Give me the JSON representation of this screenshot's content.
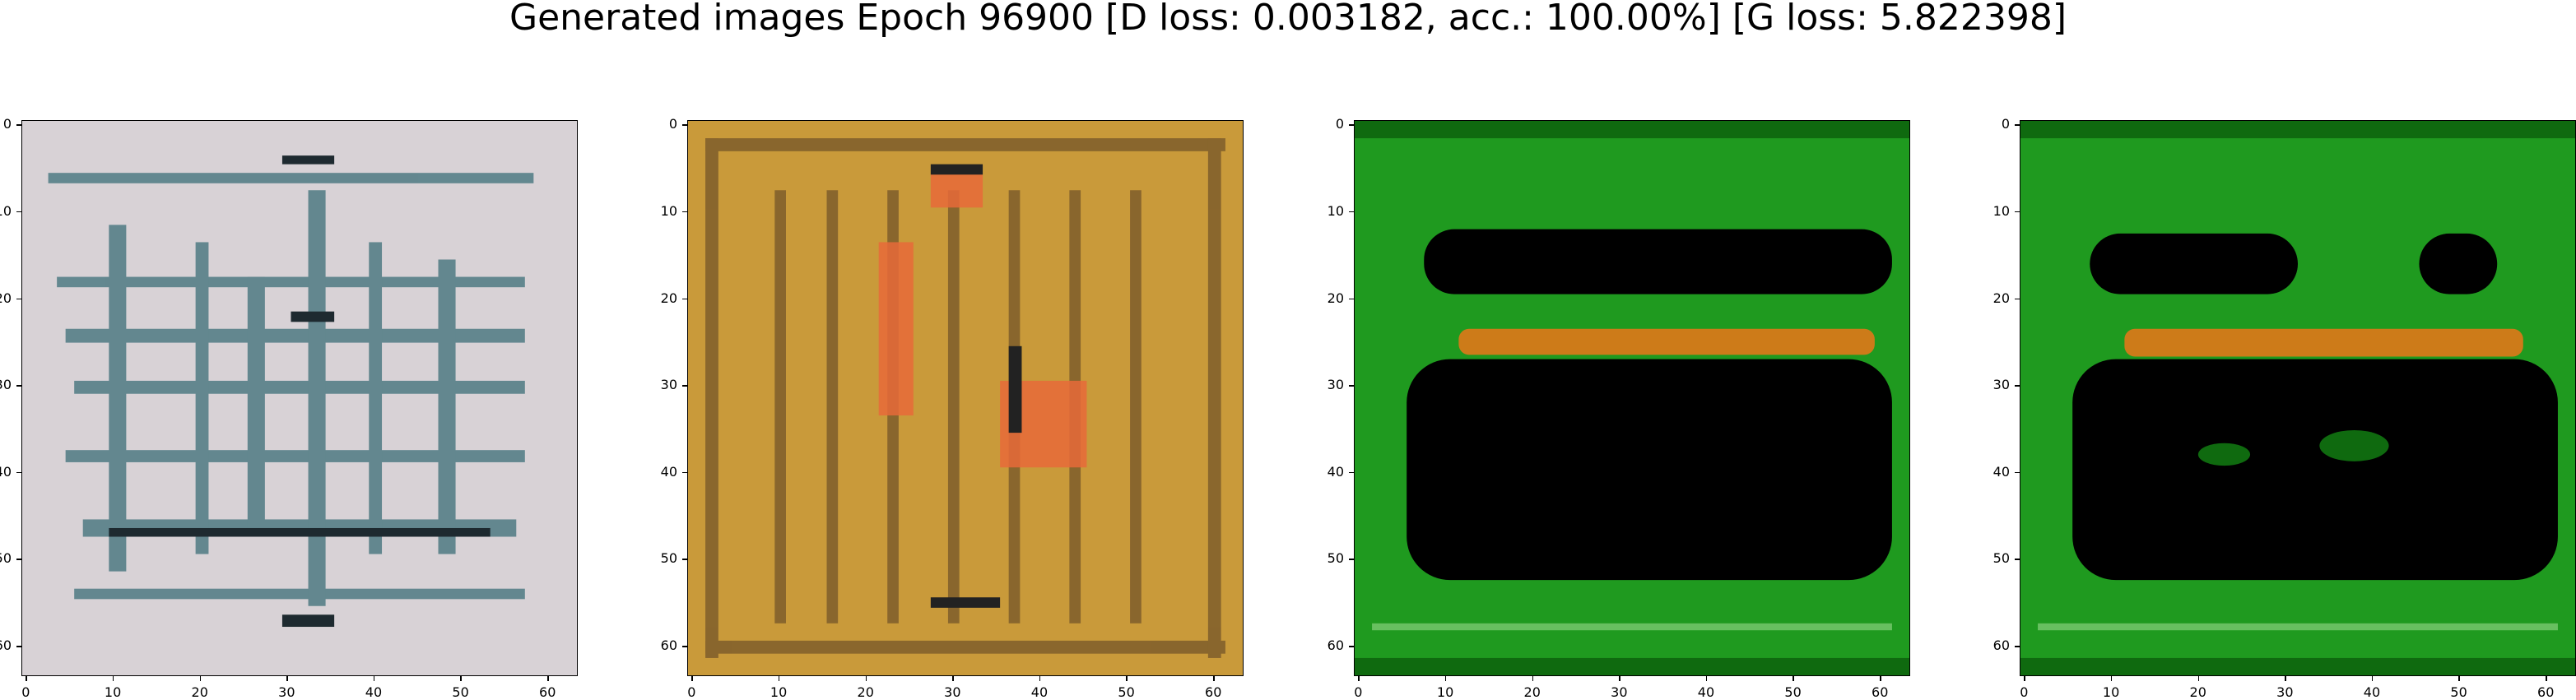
{
  "figure": {
    "title": "Generated images Epoch 96900 [D loss: 0.003182, acc.: 100.00%] [G loss: 5.822398]"
  },
  "axes": {
    "yticks": [
      "0",
      "10",
      "20",
      "30",
      "40",
      "50",
      "60"
    ],
    "xticks": [
      "0",
      "10",
      "20",
      "30",
      "40",
      "50",
      "60"
    ],
    "range": [
      0,
      64
    ]
  },
  "panels": [
    {
      "name": "gray-pattern-image",
      "palette": "gray"
    },
    {
      "name": "gold-pattern-image",
      "palette": "gold"
    },
    {
      "name": "green-frame-image-a",
      "palette": "green"
    },
    {
      "name": "green-frame-image-b",
      "palette": "green"
    }
  ]
}
